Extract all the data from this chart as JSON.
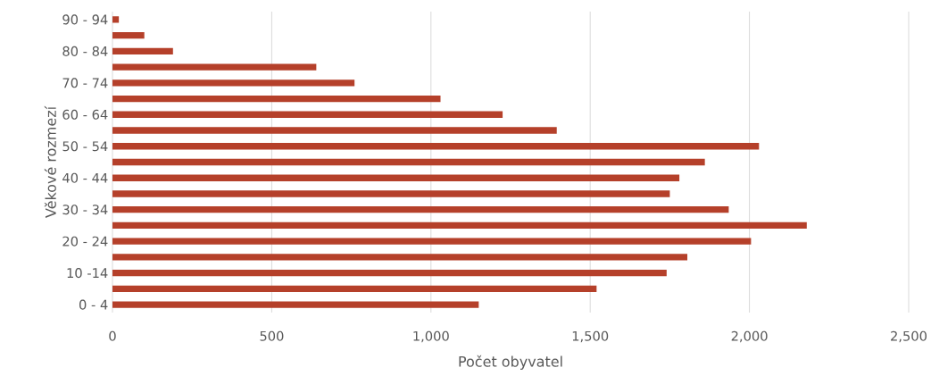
{
  "chart_data": {
    "type": "bar",
    "orientation": "horizontal",
    "xlabel": "Počet obyvatel",
    "ylabel": "Věkové rozmezí",
    "categories": [
      "90 - 94",
      null,
      "80 - 84",
      null,
      "70 - 74",
      null,
      "60 - 64",
      null,
      "50 - 54",
      null,
      "40 - 44",
      null,
      "30 - 34",
      null,
      "20 - 24",
      null,
      "10 -14",
      null,
      "0 - 4"
    ],
    "values": [
      20,
      100,
      190,
      640,
      760,
      1030,
      1225,
      1395,
      2030,
      1860,
      1780,
      1750,
      1935,
      2180,
      2005,
      1805,
      1740,
      1520,
      1150
    ],
    "color": "#b5402a",
    "xlim": [
      0,
      2500
    ],
    "xticks": [
      0,
      500,
      {
        "value": 1000,
        "label": "1,000"
      },
      {
        "value": 1500,
        "label": "1,500"
      },
      {
        "value": 2000,
        "label": "2,000"
      },
      {
        "value": 2500,
        "label": "2,500"
      }
    ],
    "grid": "x"
  }
}
